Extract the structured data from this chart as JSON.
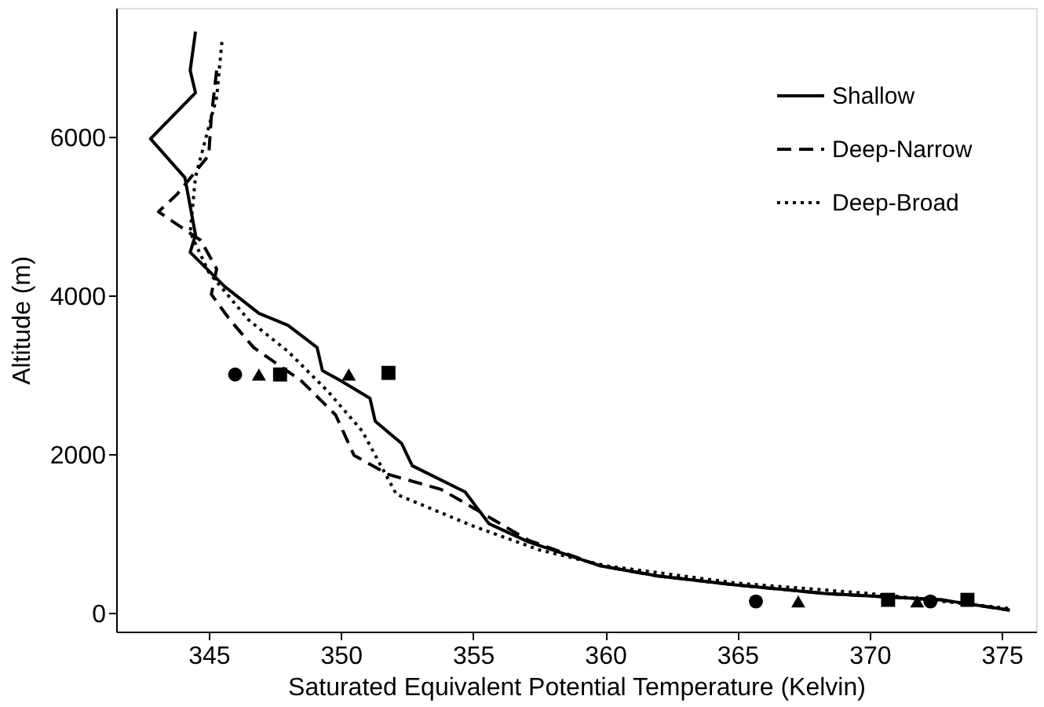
{
  "chart_data": {
    "type": "line",
    "xlabel": "Saturated Equivalent Potential Temperature (Kelvin)",
    "ylabel": "Altitude (m)",
    "xlim": [
      341.5,
      376.3
    ],
    "xticks": [
      345,
      350,
      355,
      360,
      365,
      370,
      375
    ],
    "ylim": [
      -230,
      7630
    ],
    "yticks": [
      0,
      2000,
      4000,
      6000
    ],
    "grid": false,
    "legend": "top right",
    "series": [
      {
        "name": "Shallow",
        "line_style": "solid",
        "color": "#000000",
        "x": [
          344.5,
          344.3,
          344.5,
          342.8,
          344.1,
          344.5,
          344.3,
          345.6,
          346.9,
          348.0,
          349.1,
          349.3,
          350.0,
          351.1,
          351.3,
          352.3,
          352.7,
          354.7,
          355.6,
          357.1,
          359.8,
          362.0,
          364.9,
          368.3,
          372.7,
          375.3
        ],
        "values": [
          7330,
          6840,
          6560,
          5980,
          5490,
          4770,
          4550,
          4120,
          3780,
          3630,
          3350,
          3060,
          2930,
          2710,
          2420,
          2140,
          1860,
          1530,
          1130,
          900,
          600,
          470,
          360,
          250,
          170,
          40
        ]
      },
      {
        "name": "Deep-Narrow",
        "line_style": "dashed",
        "color": "#000000",
        "x": [
          345.3,
          345.1,
          345.0,
          343.8,
          343.1,
          344.7,
          345.3,
          345.1,
          345.8,
          346.7,
          348.5,
          349.8,
          350.5,
          351.8,
          353.8,
          354.9,
          357.1,
          359.8,
          362.0,
          364.9,
          368.3,
          372.7,
          375.3
        ],
        "values": [
          6840,
          6260,
          5770,
          5280,
          5060,
          4700,
          4340,
          4020,
          3700,
          3350,
          2930,
          2500,
          1990,
          1750,
          1560,
          1350,
          920,
          600,
          470,
          360,
          250,
          170,
          40
        ]
      },
      {
        "name": "Deep-Broad",
        "line_style": "dotted",
        "color": "#000000",
        "x": [
          345.5,
          345.3,
          344.5,
          344.3,
          345.0,
          346.5,
          348.0,
          349.5,
          350.8,
          352.1,
          355.0,
          357.5,
          360.0,
          365.0,
          370.0,
          375.3
        ],
        "values": [
          7200,
          6500,
          5500,
          4800,
          4300,
          3700,
          3300,
          2800,
          2300,
          1500,
          1100,
          800,
          600,
          380,
          250,
          60
        ]
      },
      {
        "type": "scatter",
        "marker": "square",
        "color": "#000000",
        "x": [
          347.7,
          351.8,
          370.7,
          373.7
        ],
        "values": [
          3010,
          3030,
          170,
          170
        ]
      },
      {
        "type": "scatter",
        "marker": "triangle",
        "color": "#000000",
        "x": [
          346.9,
          350.3,
          367.3,
          371.8
        ],
        "values": [
          3010,
          3010,
          150,
          150
        ]
      },
      {
        "type": "scatter",
        "marker": "circle",
        "color": "#000000",
        "x": [
          346.0,
          365.7,
          372.3
        ],
        "values": [
          3010,
          150,
          150
        ]
      }
    ]
  }
}
